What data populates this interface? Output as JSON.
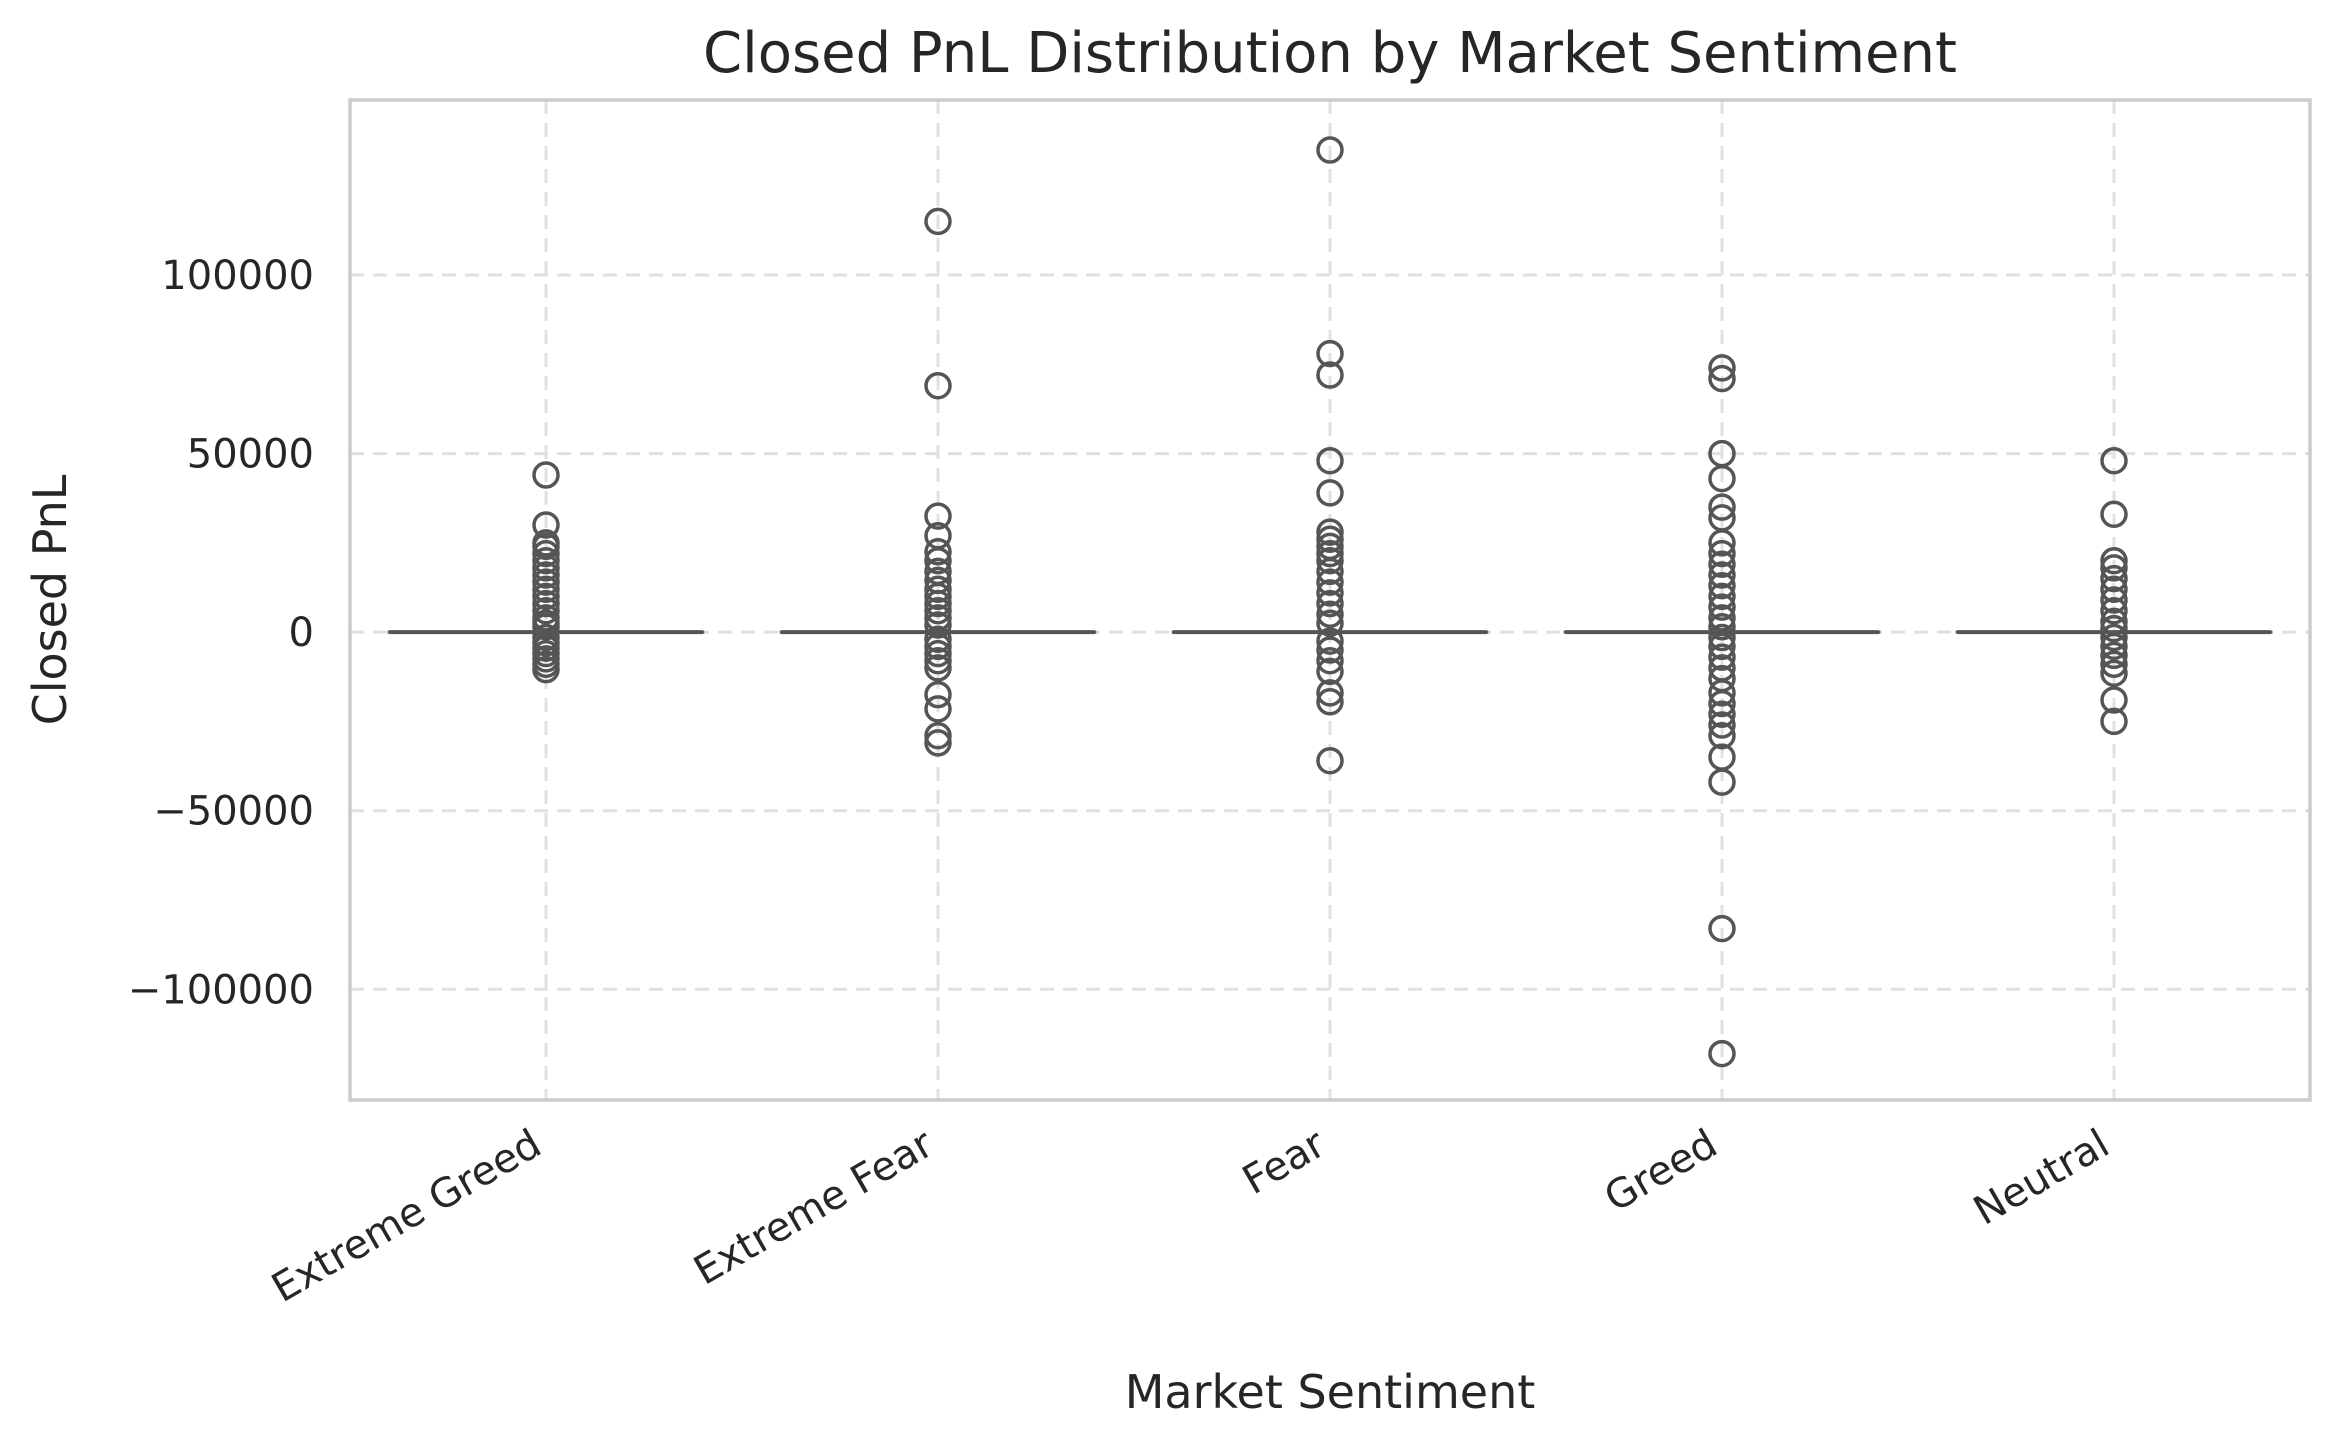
{
  "chart_data": {
    "type": "box",
    "title": "Closed PnL Distribution by Market Sentiment",
    "xlabel": "Market Sentiment",
    "ylabel": "Closed PnL",
    "categories": [
      "Extreme Greed",
      "Extreme Fear",
      "Fear",
      "Greed",
      "Neutral"
    ],
    "ylim": [
      -131000,
      149000
    ],
    "yticks": [
      -100000,
      -50000,
      0,
      50000,
      100000
    ],
    "ytick_labels": [
      "−100000",
      "−50000",
      "0",
      "50000",
      "100000"
    ],
    "grid": true,
    "color": "#555555",
    "boxes": [
      {
        "category": "Extreme Greed",
        "median": 0,
        "q1": 0,
        "q3": 0,
        "whisker_low": 0,
        "whisker_high": 0,
        "outliers": [
          44000,
          30000,
          25000,
          24000,
          22000,
          20000,
          18000,
          16000,
          14000,
          12000,
          10000,
          8000,
          6000,
          4000,
          2500,
          1500,
          -1500,
          -3000,
          -4500,
          -6000,
          -7500,
          -9000,
          -10500
        ]
      },
      {
        "category": "Extreme Fear",
        "median": 0,
        "q1": 0,
        "q3": 0,
        "whisker_low": 0,
        "whisker_high": 0,
        "outliers": [
          115000,
          69000,
          32500,
          27000,
          22500,
          20000,
          17000,
          14500,
          12000,
          10000,
          8000,
          6000,
          4000,
          2000,
          -2000,
          -4000,
          -6000,
          -8000,
          -10000,
          -17500,
          -21500,
          -29000,
          -31000
        ]
      },
      {
        "category": "Fear",
        "median": 0,
        "q1": 0,
        "q3": 0,
        "whisker_low": 0,
        "whisker_high": 0,
        "outliers": [
          135000,
          78000,
          72000,
          48000,
          39000,
          28000,
          26000,
          24000,
          22000,
          20000,
          17000,
          14000,
          11000,
          8000,
          5000,
          2500,
          -2500,
          -5000,
          -8000,
          -11000,
          -17000,
          -19500,
          -36000
        ]
      },
      {
        "category": "Greed",
        "median": 0,
        "q1": 0,
        "q3": 0,
        "whisker_low": 0,
        "whisker_high": 0,
        "outliers": [
          74000,
          71000,
          50000,
          43000,
          35000,
          32000,
          25000,
          22000,
          19000,
          16000,
          13000,
          10000,
          7000,
          4000,
          1500,
          -1500,
          -4000,
          -7000,
          -10000,
          -13000,
          -17000,
          -20000,
          -23000,
          -26000,
          -29000,
          -35000,
          -42000,
          -83000,
          -118000
        ]
      },
      {
        "category": "Neutral",
        "median": 0,
        "q1": 0,
        "q3": 0,
        "whisker_low": 0,
        "whisker_high": 0,
        "outliers": [
          48000,
          33000,
          20000,
          18000,
          15000,
          12000,
          9000,
          6000,
          3000,
          1000,
          -1500,
          -4000,
          -6500,
          -9000,
          -11500,
          -19000,
          -25000
        ]
      }
    ]
  }
}
